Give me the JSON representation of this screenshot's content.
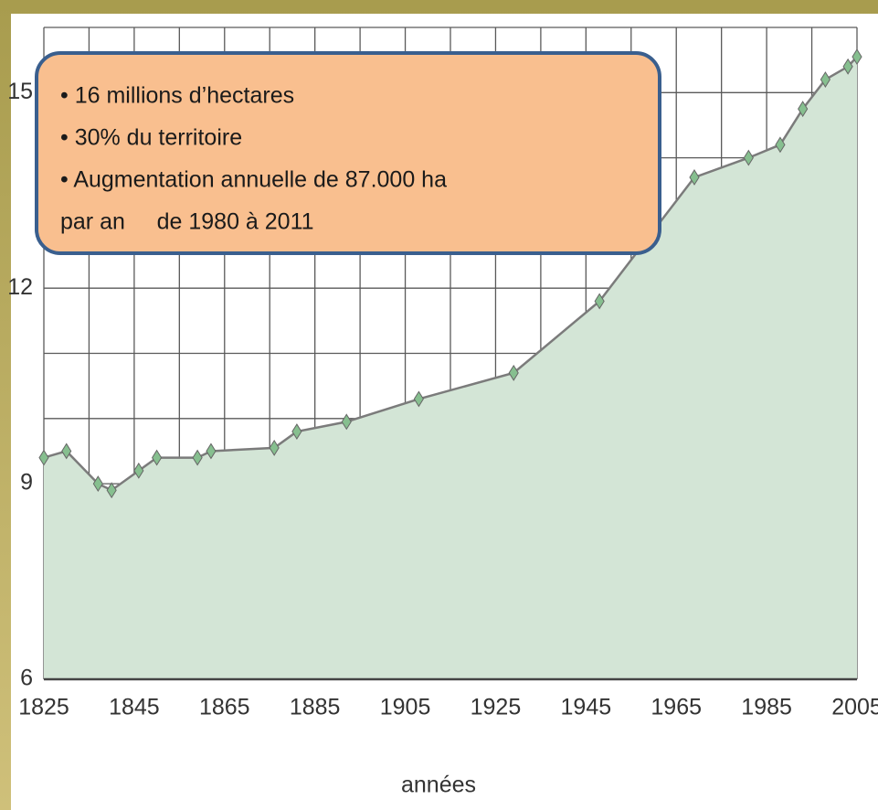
{
  "chart_data": {
    "type": "area",
    "x_label": "années",
    "x": [
      1825,
      1830,
      1837,
      1840,
      1846,
      1850,
      1859,
      1862,
      1876,
      1881,
      1892,
      1908,
      1929,
      1948,
      1969,
      1981,
      1988,
      1993,
      1998,
      2003,
      2005
    ],
    "values": [
      9.4,
      9.5,
      9.0,
      8.9,
      9.2,
      9.4,
      9.4,
      9.5,
      9.55,
      9.8,
      9.95,
      10.3,
      10.7,
      11.8,
      13.7,
      14.0,
      14.2,
      14.75,
      15.2,
      15.4,
      15.55
    ],
    "color": "#d3e5d6",
    "line_color": "#7b7b7b",
    "marker_color": "#86bf8f",
    "xlim": [
      1825,
      2005
    ],
    "xticks": [
      1825,
      1845,
      1865,
      1885,
      1905,
      1925,
      1945,
      1965,
      1985,
      2005
    ],
    "xminor": [
      1835,
      1855,
      1875,
      1895,
      1915,
      1935,
      1955,
      1975,
      1995
    ],
    "ylim": [
      6,
      16
    ],
    "yticks": [
      6,
      9,
      12,
      15
    ],
    "yminor": [
      7,
      8,
      10,
      11,
      13,
      14,
      16
    ],
    "grid": true,
    "annotation": [
      "• 16 millions d’hectares",
      "• 30% du territoire",
      "• Augmentation annuelle de 87.000 ha",
      "par an     de 1980 à 2011"
    ]
  }
}
